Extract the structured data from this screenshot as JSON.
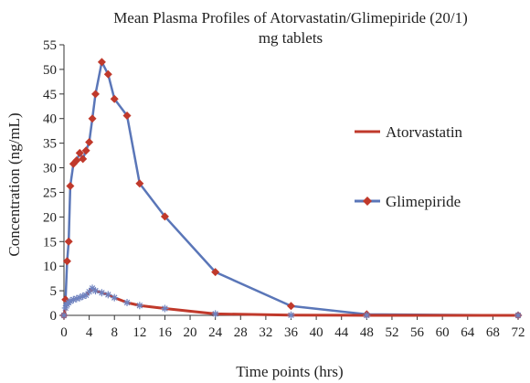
{
  "chart_data": {
    "type": "line",
    "title": [
      "Mean Plasma Profiles of Atorvastatin/Glimepiride (20/1)",
      "mg tablets"
    ],
    "xlabel": "Time points (hrs)",
    "ylabel": "Concentration (ng/mL)",
    "xlim": [
      0,
      72
    ],
    "ylim": [
      0,
      55
    ],
    "xticks": [
      0,
      4,
      8,
      12,
      16,
      20,
      24,
      28,
      32,
      36,
      40,
      44,
      48,
      52,
      56,
      60,
      64,
      68,
      72
    ],
    "yticks": [
      0,
      5,
      10,
      15,
      20,
      25,
      30,
      35,
      40,
      45,
      50,
      55
    ],
    "grid": false,
    "legend_position": "right",
    "series": [
      {
        "name": "Atorvastatin",
        "color": "#c0392b",
        "marker": "asterisk",
        "marker_color": "#6f83c0",
        "x": [
          0,
          0.25,
          0.5,
          0.75,
          1,
          1.5,
          2,
          2.5,
          3,
          3.5,
          4,
          4.5,
          5,
          6,
          7,
          8,
          10,
          12,
          16,
          24,
          36,
          48,
          72
        ],
        "y": [
          0,
          1.5,
          2.2,
          2.6,
          2.9,
          3.2,
          3.4,
          3.6,
          3.9,
          4.1,
          4.8,
          5.5,
          5.0,
          4.6,
          4.2,
          3.6,
          2.6,
          2.0,
          1.4,
          0.3,
          0.05,
          0,
          0
        ]
      },
      {
        "name": "Glimepiride",
        "color": "#5a76b8",
        "marker": "diamond",
        "marker_color": "#c0392b",
        "x": [
          0,
          0.25,
          0.5,
          0.75,
          1,
          1.5,
          2,
          2.5,
          3,
          3.5,
          4,
          4.5,
          5,
          6,
          7,
          8,
          10,
          12,
          16,
          24,
          36,
          48,
          72
        ],
        "y": [
          0,
          3.2,
          11,
          15,
          26.3,
          30.8,
          31.5,
          33,
          31.8,
          33.5,
          35.2,
          40,
          45,
          51.5,
          49,
          44,
          40.6,
          26.8,
          20.1,
          8.8,
          1.9,
          0.2,
          0
        ]
      }
    ]
  }
}
